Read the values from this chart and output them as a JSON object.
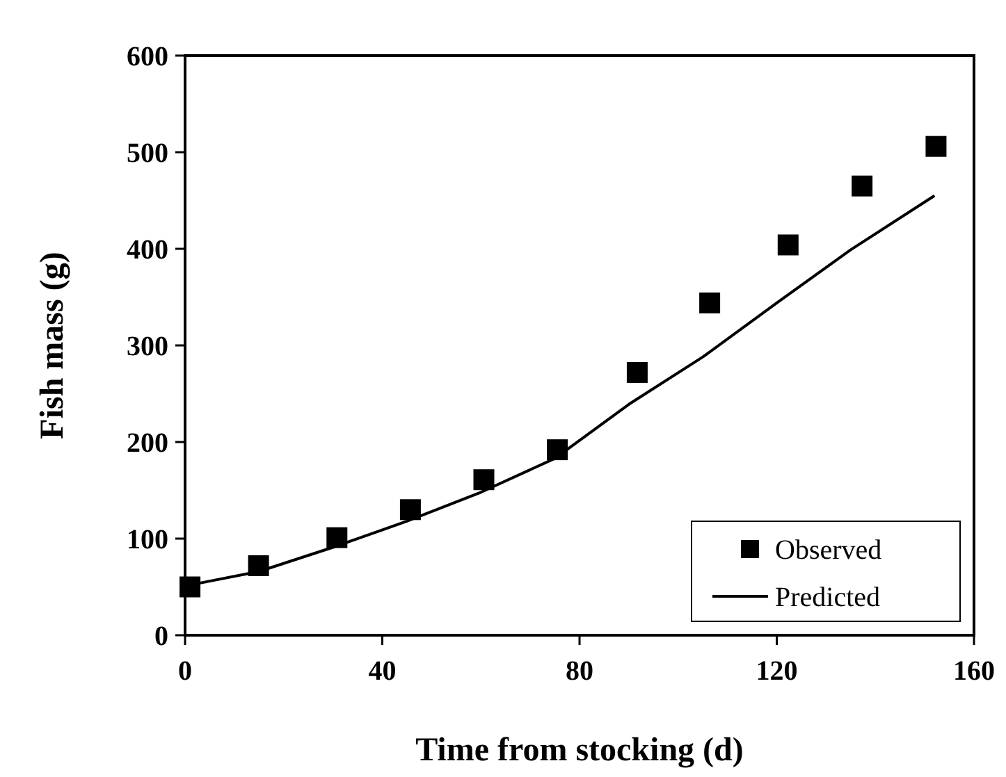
{
  "chart_data": {
    "type": "scatter",
    "xlabel": "Time from stocking (d)",
    "ylabel": "Fish mass (g)",
    "xlim": [
      0,
      160
    ],
    "xticks": [
      0,
      40,
      80,
      120,
      160
    ],
    "ylim": [
      0,
      600
    ],
    "yticks": [
      0,
      100,
      200,
      300,
      400,
      500,
      600
    ],
    "grid": false,
    "legend": "bottom right",
    "series": [
      {
        "name": "Observed",
        "marker": "square",
        "color": "#000000",
        "x": [
          1,
          14.9,
          30.8,
          45.7,
          60.6,
          75.5,
          91.7,
          106.4,
          122.3,
          137.3,
          152.3
        ],
        "values": [
          50,
          72,
          101,
          130,
          161,
          192,
          272,
          344,
          404,
          465,
          506
        ]
      },
      {
        "name": "Predicted",
        "type": "line",
        "marker": "none",
        "line_style": "solid",
        "color": "#000000",
        "x": [
          0,
          15,
          30,
          45,
          60,
          75,
          90,
          105,
          120,
          135,
          152
        ],
        "values": [
          51,
          66,
          91,
          118,
          148,
          183,
          239,
          288,
          344,
          399,
          455
        ]
      }
    ]
  }
}
